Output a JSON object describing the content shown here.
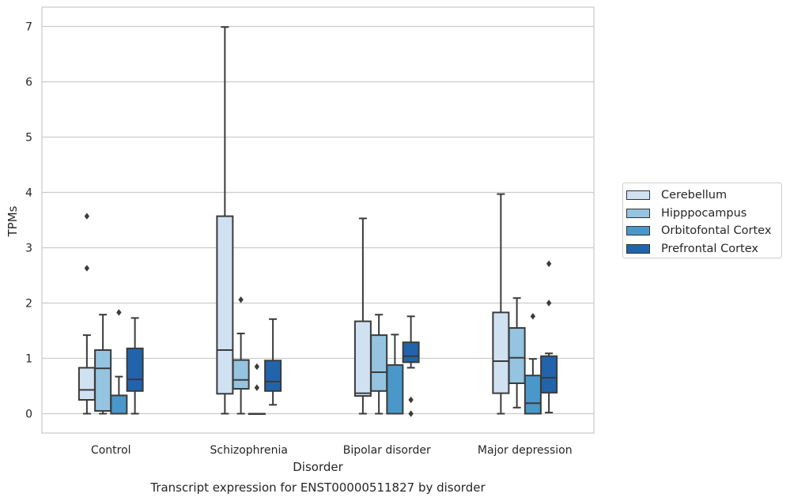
{
  "chart_data": {
    "type": "box",
    "title": "Transcript expression for ENST00000511827 by disorder",
    "xlabel": "Disorder",
    "ylabel": "TPMs",
    "ylim": [
      -0.35,
      7.35
    ],
    "yticks": [
      0,
      1,
      2,
      3,
      4,
      5,
      6,
      7
    ],
    "categories": [
      "Control",
      "Schizophrenia",
      "Bipolar disorder",
      "Major depression"
    ],
    "grid": "horizontal",
    "legend_position": "right",
    "series": [
      {
        "name": "Cerebellum",
        "color": "#d0e1f2",
        "boxes": [
          {
            "whislo": 0.0,
            "q1": 0.25,
            "med": 0.43,
            "q3": 0.83,
            "whishi": 1.42,
            "fliers": [
              2.63,
              3.57
            ]
          },
          {
            "whislo": 0.0,
            "q1": 0.36,
            "med": 1.15,
            "q3": 3.57,
            "whishi": 6.99,
            "fliers": []
          },
          {
            "whislo": 0.0,
            "q1": 0.32,
            "med": 0.37,
            "q3": 1.67,
            "whishi": 3.53,
            "fliers": []
          },
          {
            "whislo": 0.0,
            "q1": 0.37,
            "med": 0.95,
            "q3": 1.83,
            "whishi": 3.97,
            "fliers": []
          }
        ]
      },
      {
        "name": "Hipppocampus",
        "color": "#94c4df",
        "boxes": [
          {
            "whislo": 0.0,
            "q1": 0.05,
            "med": 0.82,
            "q3": 1.15,
            "whishi": 1.79,
            "fliers": []
          },
          {
            "whislo": 0.0,
            "q1": 0.45,
            "med": 0.61,
            "q3": 0.97,
            "whishi": 1.45,
            "fliers": [
              2.06
            ]
          },
          {
            "whislo": 0.0,
            "q1": 0.41,
            "med": 0.75,
            "q3": 1.42,
            "whishi": 1.79,
            "fliers": []
          },
          {
            "whislo": 0.11,
            "q1": 0.55,
            "med": 1.01,
            "q3": 1.55,
            "whishi": 2.09,
            "fliers": []
          }
        ]
      },
      {
        "name": "Orbitofontal Cortex",
        "color": "#4a98c9",
        "boxes": [
          {
            "whislo": 0.0,
            "q1": 0.0,
            "med": 0.0,
            "q3": 0.33,
            "whishi": 0.67,
            "fliers": [
              1.83
            ]
          },
          {
            "whislo": 0.0,
            "q1": 0.0,
            "med": 0.0,
            "q3": 0.0,
            "whishi": 0.0,
            "fliers": [
              0.47,
              0.85
            ]
          },
          {
            "whislo": 0.0,
            "q1": 0.0,
            "med": 0.0,
            "q3": 0.88,
            "whishi": 1.43,
            "fliers": []
          },
          {
            "whislo": 0.0,
            "q1": 0.0,
            "med": 0.19,
            "q3": 0.69,
            "whishi": 0.99,
            "fliers": [
              1.76
            ]
          }
        ]
      },
      {
        "name": "Prefrontal Cortex",
        "color": "#2164ab",
        "boxes": [
          {
            "whislo": 0.0,
            "q1": 0.41,
            "med": 0.62,
            "q3": 1.18,
            "whishi": 1.73,
            "fliers": []
          },
          {
            "whislo": 0.16,
            "q1": 0.41,
            "med": 0.58,
            "q3": 0.96,
            "whishi": 1.71,
            "fliers": []
          },
          {
            "whislo": 0.83,
            "q1": 0.93,
            "med": 1.04,
            "q3": 1.29,
            "whishi": 1.76,
            "fliers": [
              0.0,
              0.25
            ]
          },
          {
            "whislo": 0.02,
            "q1": 0.38,
            "med": 0.65,
            "q3": 1.04,
            "whishi": 1.09,
            "fliers": [
              2.0,
              2.71
            ]
          }
        ]
      }
    ]
  }
}
